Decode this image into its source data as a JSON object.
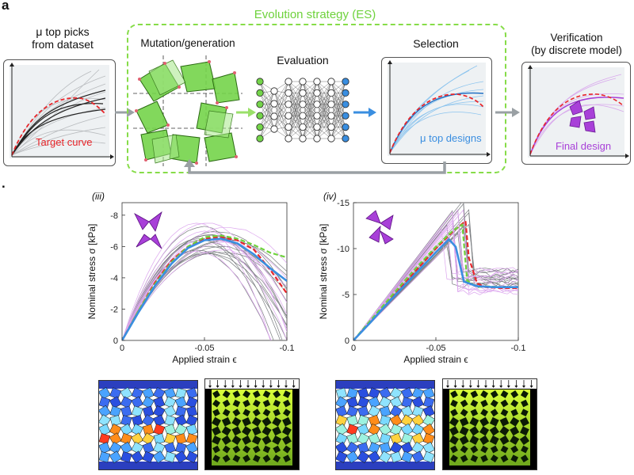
{
  "panel_a": {
    "letter": "a",
    "col1_label_l1": "μ top picks",
    "col1_label_l2": "from dataset",
    "target_curve": "Target curve",
    "es_title": "Evolution strategy (ES)",
    "mutation_label": "Mutation/generation",
    "evaluation_label": "Evaluation",
    "selection_label": "Selection",
    "top_designs": "μ top designs",
    "verification_l1": "Verification",
    "verification_l2": "(by discrete model)",
    "final_design": "Final design",
    "colors": {
      "es_green": "#6ed23c",
      "target_red": "#e8262b",
      "blue": "#3a8ee0",
      "purple": "#a840d8"
    }
  },
  "panel_b": {
    "letter": "."
  },
  "chart_data": [
    {
      "type": "line",
      "panel": "(iii)",
      "xlabel": "Applied strain ϵ",
      "ylabel": "Nominal stress σ  [kPa]",
      "xticks": [
        "0",
        "-0.05",
        "-0.1"
      ],
      "yticks": [
        "0",
        "-2",
        "-4",
        "-6",
        "-8"
      ],
      "xlim": [
        0,
        -0.1
      ],
      "ylim": [
        0,
        -8.8
      ],
      "series": [
        {
          "color": "#e8262b",
          "style": "dashed",
          "x": [
            0,
            -0.01,
            -0.02,
            -0.03,
            -0.04,
            -0.05,
            -0.06,
            -0.07,
            -0.08,
            -0.09,
            -0.1
          ],
          "y": [
            0,
            -1.9,
            -3.7,
            -5.1,
            -6.0,
            -6.5,
            -6.6,
            -6.4,
            -5.8,
            -4.5,
            -3.0
          ]
        },
        {
          "color": "#6ed23c",
          "style": "dashed",
          "x": [
            0,
            -0.01,
            -0.02,
            -0.03,
            -0.04,
            -0.05,
            -0.06,
            -0.07,
            -0.08,
            -0.09,
            -0.1
          ],
          "y": [
            0,
            -1.9,
            -3.6,
            -5.0,
            -6.0,
            -6.6,
            -6.7,
            -6.5,
            -6.1,
            -5.6,
            -5.3
          ]
        },
        {
          "color": "#3a8ee0",
          "style": "solid",
          "x": [
            0,
            -0.01,
            -0.02,
            -0.03,
            -0.04,
            -0.05,
            -0.06,
            -0.07,
            -0.08,
            -0.09,
            -0.1
          ],
          "y": [
            0,
            -1.8,
            -3.5,
            -4.9,
            -5.9,
            -6.4,
            -6.5,
            -6.2,
            -5.5,
            -4.6,
            -3.8
          ]
        }
      ]
    },
    {
      "type": "line",
      "panel": "(iv)",
      "xlabel": "Applied strain ϵ",
      "ylabel": "Nominal stress σ  [kPa]",
      "xticks": [
        "0",
        "-0.05",
        "-0.1"
      ],
      "yticks": [
        "0",
        "-5",
        "-10",
        "-15"
      ],
      "xlim": [
        0,
        -0.1
      ],
      "ylim": [
        0,
        -15
      ],
      "series": [
        {
          "color": "#e8262b",
          "style": "dashed",
          "x": [
            0,
            -0.01,
            -0.02,
            -0.03,
            -0.04,
            -0.05,
            -0.06,
            -0.068,
            -0.07,
            -0.075,
            -0.08,
            -0.09,
            -0.1
          ],
          "y": [
            0,
            -2.0,
            -4.0,
            -6.0,
            -8.0,
            -10.0,
            -11.8,
            -13.0,
            -9.0,
            -6.2,
            -5.8,
            -5.7,
            -5.7
          ]
        },
        {
          "color": "#6ed23c",
          "style": "dashed",
          "x": [
            0,
            -0.01,
            -0.02,
            -0.03,
            -0.04,
            -0.05,
            -0.06,
            -0.066,
            -0.069,
            -0.075,
            -0.08,
            -0.09,
            -0.1
          ],
          "y": [
            0,
            -2.1,
            -4.2,
            -6.3,
            -8.3,
            -10.2,
            -11.9,
            -12.6,
            -6.5,
            -5.8,
            -5.9,
            -5.8,
            -5.8
          ]
        },
        {
          "color": "#3a8ee0",
          "style": "solid",
          "x": [
            0,
            -0.01,
            -0.02,
            -0.03,
            -0.04,
            -0.05,
            -0.058,
            -0.062,
            -0.067,
            -0.075,
            -0.085,
            -0.095,
            -0.1
          ],
          "y": [
            0,
            -1.9,
            -3.9,
            -5.8,
            -7.7,
            -9.6,
            -11.0,
            -10.2,
            -6.4,
            -5.9,
            -5.8,
            -5.8,
            -5.8
          ]
        }
      ]
    }
  ]
}
